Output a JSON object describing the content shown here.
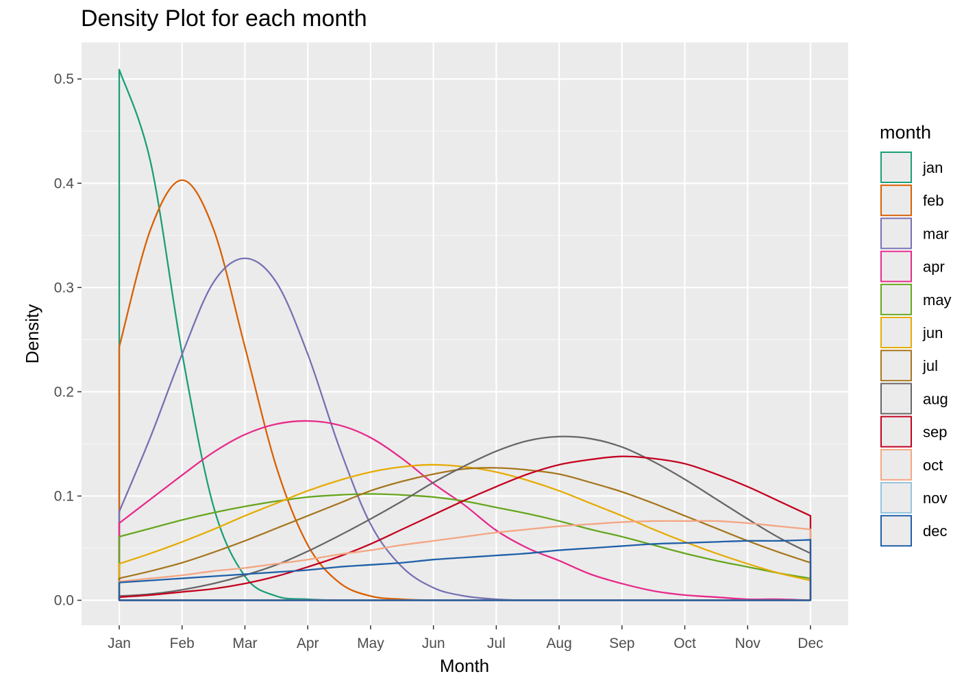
{
  "chart_data": {
    "type": "line",
    "title": "Density Plot for each month",
    "xlabel": "Month",
    "ylabel": "Density",
    "x_ticks": [
      "Jan",
      "Feb",
      "Mar",
      "Apr",
      "May",
      "Jun",
      "Jul",
      "Aug",
      "Sep",
      "Oct",
      "Nov",
      "Dec"
    ],
    "y_ticks": [
      "0.0",
      "0.1",
      "0.2",
      "0.3",
      "0.4",
      "0.5"
    ],
    "xlim": [
      0.4,
      12.6
    ],
    "ylim": [
      -0.024,
      0.535
    ],
    "grid": true,
    "legend_title": "month",
    "legend_position": "right",
    "series": [
      {
        "name": "jan",
        "color": "#1b9e77",
        "x": [
          1,
          1.5,
          2,
          2.5,
          3,
          3.5,
          4,
          4.5,
          5,
          5.5,
          6,
          6.5,
          7,
          7.5,
          8,
          8.5,
          9,
          9.5,
          10,
          10.5,
          11,
          11.5,
          12
        ],
        "y": [
          0.509,
          0.42,
          0.237,
          0.09,
          0.023,
          0.004,
          0.001,
          0,
          0,
          0,
          0,
          0,
          0,
          0,
          0,
          0,
          0,
          0,
          0,
          0,
          0,
          0,
          0
        ]
      },
      {
        "name": "feb",
        "color": "#d95f02",
        "x": [
          1,
          1.5,
          2,
          2.5,
          3,
          3.5,
          4,
          4.5,
          5,
          5.5,
          6,
          6.5,
          7,
          7.5,
          8,
          8.5,
          9,
          9.5,
          10,
          10.5,
          11,
          11.5,
          12
        ],
        "y": [
          0.243,
          0.356,
          0.403,
          0.356,
          0.243,
          0.128,
          0.053,
          0.017,
          0.004,
          0.001,
          0,
          0,
          0,
          0,
          0,
          0,
          0,
          0,
          0,
          0,
          0,
          0,
          0
        ]
      },
      {
        "name": "mar",
        "color": "#7570b3",
        "x": [
          1,
          1.5,
          2,
          2.5,
          3,
          3.5,
          4,
          4.5,
          5,
          5.5,
          6,
          6.5,
          7,
          7.5,
          8,
          8.5,
          9,
          9.5,
          10,
          10.5,
          11,
          11.5,
          12
        ],
        "y": [
          0.085,
          0.157,
          0.236,
          0.305,
          0.328,
          0.305,
          0.236,
          0.147,
          0.073,
          0.032,
          0.012,
          0.004,
          0.001,
          0,
          0,
          0,
          0,
          0,
          0,
          0,
          0,
          0,
          0
        ]
      },
      {
        "name": "apr",
        "color": "#e7298a",
        "x": [
          1,
          1.5,
          2,
          2.5,
          3,
          3.5,
          4,
          4.5,
          5,
          5.5,
          6,
          6.5,
          7,
          7.5,
          8,
          8.5,
          9,
          9.5,
          10,
          10.5,
          11,
          11.5,
          12
        ],
        "y": [
          0.074,
          0.097,
          0.12,
          0.142,
          0.159,
          0.169,
          0.172,
          0.168,
          0.156,
          0.136,
          0.112,
          0.091,
          0.067,
          0.05,
          0.038,
          0.025,
          0.016,
          0.009,
          0.005,
          0.003,
          0.001,
          0.001,
          0
        ]
      },
      {
        "name": "may",
        "color": "#66a61e",
        "x": [
          1,
          1.5,
          2,
          2.5,
          3,
          3.5,
          4,
          4.5,
          5,
          5.5,
          6,
          6.5,
          7,
          7.5,
          8,
          8.5,
          9,
          9.5,
          10,
          10.5,
          11,
          11.5,
          12
        ],
        "y": [
          0.061,
          0.069,
          0.077,
          0.084,
          0.09,
          0.095,
          0.099,
          0.101,
          0.102,
          0.101,
          0.099,
          0.095,
          0.089,
          0.083,
          0.076,
          0.068,
          0.061,
          0.053,
          0.045,
          0.038,
          0.032,
          0.026,
          0.021
        ]
      },
      {
        "name": "jun",
        "color": "#e6ab02",
        "x": [
          1,
          1.5,
          2,
          2.5,
          3,
          3.5,
          4,
          4.5,
          5,
          5.5,
          6,
          6.5,
          7,
          7.5,
          8,
          8.5,
          9,
          9.5,
          10,
          10.5,
          11,
          11.5,
          12
        ],
        "y": [
          0.035,
          0.045,
          0.056,
          0.068,
          0.081,
          0.093,
          0.105,
          0.115,
          0.123,
          0.128,
          0.13,
          0.128,
          0.123,
          0.115,
          0.105,
          0.093,
          0.081,
          0.068,
          0.056,
          0.045,
          0.035,
          0.026,
          0.019
        ]
      },
      {
        "name": "jul",
        "color": "#a6761d",
        "x": [
          1,
          1.5,
          2,
          2.5,
          3,
          3.5,
          4,
          4.5,
          5,
          5.5,
          6,
          6.5,
          7,
          7.5,
          8,
          8.5,
          9,
          9.5,
          10,
          10.5,
          11,
          11.5,
          12
        ],
        "y": [
          0.021,
          0.028,
          0.036,
          0.046,
          0.057,
          0.069,
          0.081,
          0.093,
          0.105,
          0.114,
          0.121,
          0.126,
          0.127,
          0.125,
          0.121,
          0.113,
          0.104,
          0.093,
          0.081,
          0.069,
          0.057,
          0.046,
          0.036
        ]
      },
      {
        "name": "aug",
        "color": "#666666",
        "x": [
          1,
          1.5,
          2,
          2.5,
          3,
          3.5,
          4,
          4.5,
          5,
          5.5,
          6,
          6.5,
          7,
          7.5,
          8,
          8.5,
          9,
          9.5,
          10,
          10.5,
          11,
          11.5,
          12
        ],
        "y": [
          0.004,
          0.006,
          0.01,
          0.016,
          0.024,
          0.034,
          0.047,
          0.062,
          0.078,
          0.095,
          0.113,
          0.129,
          0.143,
          0.153,
          0.157,
          0.155,
          0.147,
          0.133,
          0.116,
          0.097,
          0.078,
          0.06,
          0.045
        ]
      },
      {
        "name": "sep",
        "color": "#c4001f",
        "x": [
          1,
          1.5,
          2,
          2.5,
          3,
          3.5,
          4,
          4.5,
          5,
          5.5,
          6,
          6.5,
          7,
          7.5,
          8,
          8.5,
          9,
          9.5,
          10,
          10.5,
          11,
          11.5,
          12
        ],
        "y": [
          0.003,
          0.005,
          0.008,
          0.011,
          0.016,
          0.023,
          0.032,
          0.042,
          0.054,
          0.068,
          0.082,
          0.096,
          0.109,
          0.121,
          0.13,
          0.135,
          0.138,
          0.136,
          0.131,
          0.121,
          0.109,
          0.095,
          0.081
        ]
      },
      {
        "name": "oct",
        "color": "#f4a582",
        "x": [
          1,
          1.5,
          2,
          2.5,
          3,
          3.5,
          4,
          4.5,
          5,
          5.5,
          6,
          6.5,
          7,
          7.5,
          8,
          8.5,
          9,
          9.5,
          10,
          10.5,
          11,
          11.5,
          12
        ],
        "y": [
          0.018,
          0.021,
          0.024,
          0.028,
          0.031,
          0.035,
          0.039,
          0.044,
          0.048,
          0.053,
          0.057,
          0.061,
          0.065,
          0.068,
          0.071,
          0.073,
          0.075,
          0.076,
          0.076,
          0.076,
          0.074,
          0.071,
          0.068
        ]
      },
      {
        "name": "nov",
        "color": "#92c5de",
        "x": [
          1,
          12
        ],
        "y": [
          0,
          0
        ]
      },
      {
        "name": "dec",
        "color": "#1f5fa8",
        "x": [
          1,
          1.5,
          2,
          2.5,
          3,
          3.5,
          4,
          4.5,
          5,
          5.5,
          6,
          6.5,
          7,
          7.5,
          8,
          8.5,
          9,
          9.5,
          10,
          10.5,
          11,
          11.5,
          12
        ],
        "y": [
          0.017,
          0.019,
          0.021,
          0.023,
          0.025,
          0.027,
          0.029,
          0.032,
          0.034,
          0.036,
          0.039,
          0.041,
          0.043,
          0.045,
          0.048,
          0.05,
          0.052,
          0.054,
          0.055,
          0.056,
          0.057,
          0.057,
          0.058
        ]
      }
    ]
  }
}
